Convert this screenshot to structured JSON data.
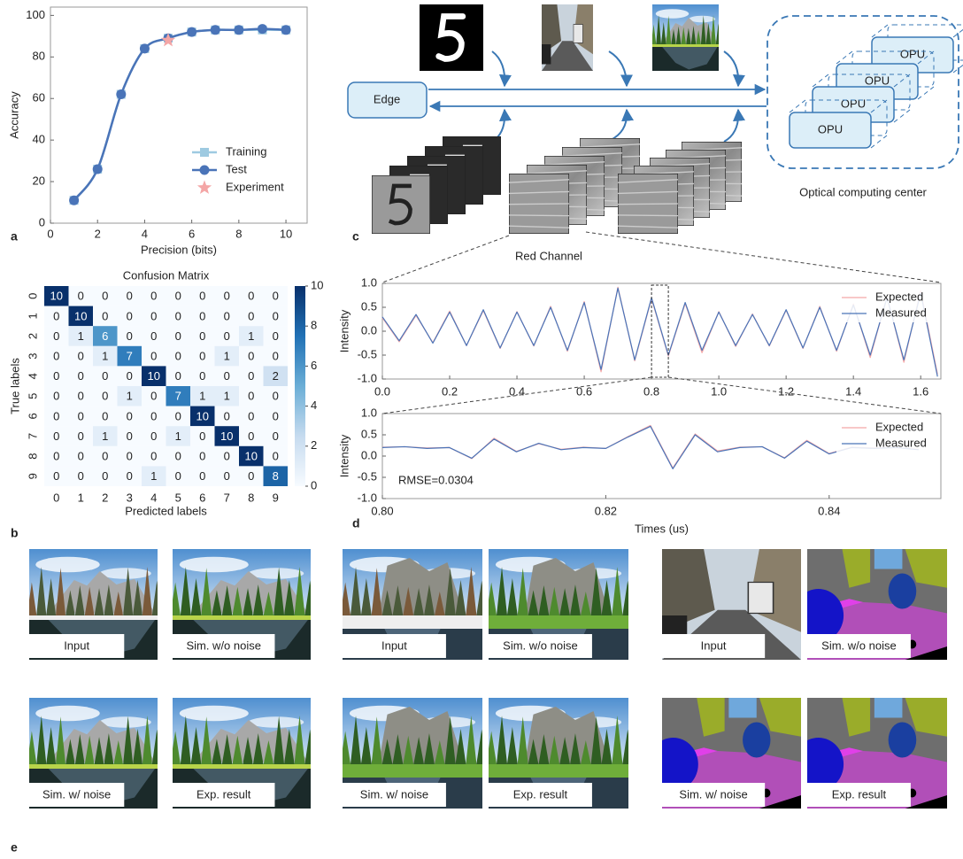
{
  "panel_labels": [
    "a",
    "b",
    "c",
    "d",
    "e"
  ],
  "chart_data": [
    {
      "type": "line",
      "x": [
        1,
        2,
        3,
        4,
        5,
        6,
        7,
        8,
        9,
        10
      ],
      "xlim": [
        0,
        10.9
      ],
      "ylim": [
        0,
        104
      ],
      "xticks": [
        0,
        2,
        4,
        6,
        8,
        10
      ],
      "yticks": [
        0,
        20,
        40,
        60,
        80,
        100
      ],
      "xlabel": "Precision (bits)",
      "ylabel": "Accuracy",
      "smooth": true,
      "legend": "lower right",
      "series": [
        {
          "name": "Training",
          "color": "#9ecae1",
          "marker": "square",
          "values": [
            11,
            26,
            62,
            84,
            89,
            92,
            93,
            93,
            93,
            93
          ]
        },
        {
          "name": "Test",
          "color": "#4a74b8",
          "marker": "circle",
          "values": [
            11,
            26,
            62,
            84,
            89,
            92,
            93,
            93,
            93.5,
            93
          ]
        },
        {
          "name": "Experiment",
          "color": "#f4a6a6",
          "marker": "star",
          "x": [
            5
          ],
          "values": [
            88
          ]
        }
      ]
    },
    {
      "type": "heatmap",
      "title": "Confusion Matrix",
      "xlabel": "Predicted labels",
      "ylabel": "True labels",
      "x_categories": [
        "0",
        "1",
        "2",
        "3",
        "4",
        "5",
        "6",
        "7",
        "8",
        "9"
      ],
      "y_categories": [
        "0",
        "1",
        "2",
        "3",
        "4",
        "5",
        "6",
        "7",
        "8",
        "9"
      ],
      "values": [
        [
          10,
          0,
          0,
          0,
          0,
          0,
          0,
          0,
          0,
          0
        ],
        [
          0,
          10,
          0,
          0,
          0,
          0,
          0,
          0,
          0,
          0
        ],
        [
          0,
          1,
          6,
          0,
          0,
          0,
          0,
          0,
          1,
          0
        ],
        [
          0,
          0,
          1,
          7,
          0,
          0,
          0,
          1,
          0,
          0
        ],
        [
          0,
          0,
          0,
          0,
          10,
          0,
          0,
          0,
          0,
          2
        ],
        [
          0,
          0,
          0,
          1,
          0,
          7,
          1,
          1,
          0,
          0
        ],
        [
          0,
          0,
          0,
          0,
          0,
          0,
          10,
          0,
          0,
          0
        ],
        [
          0,
          0,
          1,
          0,
          0,
          1,
          0,
          10,
          0,
          0
        ],
        [
          0,
          0,
          0,
          0,
          0,
          0,
          0,
          0,
          10,
          0
        ],
        [
          0,
          0,
          0,
          0,
          1,
          0,
          0,
          0,
          0,
          8
        ]
      ],
      "clim": [
        0,
        10
      ],
      "cticks": [
        0,
        2,
        4,
        6,
        8,
        10
      ]
    },
    {
      "type": "line",
      "x": [
        0,
        0.05,
        0.1,
        0.15,
        0.2,
        0.25,
        0.3,
        0.35,
        0.4,
        0.45,
        0.5,
        0.55,
        0.6,
        0.65,
        0.7,
        0.75,
        0.8,
        0.85,
        0.9,
        0.95,
        1,
        1.05,
        1.1,
        1.15,
        1.2,
        1.25,
        1.3,
        1.35,
        1.4,
        1.45,
        1.5,
        1.55,
        1.6,
        1.65
      ],
      "xlim": [
        0,
        1.66
      ],
      "ylim": [
        -1,
        1
      ],
      "xticks": [
        {
          "value": 0,
          "label": "0.0"
        },
        0.2,
        0.4,
        0.6,
        0.8,
        {
          "value": 1,
          "label": "1.0"
        },
        1.2,
        1.4,
        1.6
      ],
      "yticks": [
        {
          "value": -1,
          "label": "-1.0"
        },
        -0.5,
        {
          "value": 0,
          "label": "0.0"
        },
        0.5,
        {
          "value": 1,
          "label": "1.0"
        }
      ],
      "ylabel": "Intensity",
      "legend": "upper right",
      "series": [
        {
          "name": "Expected",
          "color": "#f4a6a6",
          "values": [
            0.28,
            -0.22,
            0.33,
            -0.24,
            0.42,
            -0.3,
            0.43,
            -0.36,
            0.41,
            -0.31,
            0.52,
            -0.42,
            0.62,
            -0.85,
            0.92,
            -0.62,
            0.68,
            -0.52,
            0.58,
            -0.45,
            0.41,
            -0.32,
            0.36,
            -0.31,
            0.44,
            -0.36,
            0.52,
            -0.42,
            0.57,
            -0.55,
            0.72,
            -0.65,
            0.85,
            -0.9
          ]
        },
        {
          "name": "Measured",
          "color": "#4a74b8",
          "values": [
            0.3,
            -0.2,
            0.35,
            -0.25,
            0.4,
            -0.3,
            0.45,
            -0.35,
            0.4,
            -0.3,
            0.5,
            -0.4,
            0.6,
            -0.8,
            0.9,
            -0.6,
            0.7,
            -0.5,
            0.6,
            -0.4,
            0.4,
            -0.3,
            0.35,
            -0.3,
            0.45,
            -0.35,
            0.5,
            -0.4,
            0.55,
            -0.5,
            0.7,
            -0.6,
            0.8,
            -0.95
          ]
        }
      ]
    },
    {
      "type": "line",
      "x": [
        0.8,
        0.802,
        0.804,
        0.806,
        0.808,
        0.81,
        0.812,
        0.814,
        0.816,
        0.818,
        0.82,
        0.822,
        0.824,
        0.826,
        0.828,
        0.83,
        0.832,
        0.834,
        0.836,
        0.838,
        0.84,
        0.842,
        0.844,
        0.846,
        0.848
      ],
      "xlim": [
        0.8,
        0.85
      ],
      "ylim": [
        -1,
        1
      ],
      "xticks": [
        {
          "value": 0.8,
          "label": "0.80"
        },
        0.82,
        0.84
      ],
      "yticks": [
        {
          "value": -1,
          "label": "-1.0"
        },
        -0.5,
        {
          "value": 0,
          "label": "0.0"
        },
        0.5,
        {
          "value": 1,
          "label": "1.0"
        }
      ],
      "xlabel": "Times (us)",
      "ylabel": "Intensity",
      "legend": "upper right",
      "annotations": [
        "RMSE=0.0304"
      ],
      "series": [
        {
          "name": "Expected",
          "color": "#f4a6a6",
          "values": [
            0.21,
            0.22,
            0.19,
            0.2,
            -0.06,
            0.42,
            0.11,
            0.29,
            0.16,
            0.21,
            0.18,
            0.46,
            0.72,
            -0.28,
            0.52,
            0.12,
            0.21,
            0.22,
            -0.04,
            0.37,
            0.06,
            0.21,
            0.19,
            0.2,
            0.16
          ]
        },
        {
          "name": "Measured",
          "color": "#4a74b8",
          "values": [
            0.2,
            0.22,
            0.18,
            0.2,
            -0.05,
            0.4,
            0.1,
            0.3,
            0.15,
            0.2,
            0.18,
            0.45,
            0.7,
            -0.3,
            0.5,
            0.1,
            0.2,
            0.22,
            -0.05,
            0.35,
            0.05,
            0.2,
            0.18,
            0.2,
            0.15
          ]
        }
      ]
    }
  ],
  "diagram": {
    "nodes": [
      {
        "label": "Edge"
      },
      {
        "label": "OPU"
      },
      {
        "label": "OPU"
      },
      {
        "label": "OPU"
      },
      {
        "label": "OPU"
      }
    ],
    "caption": "Optical computing center",
    "feature_label": "Red Channel"
  },
  "image_groups": [
    {
      "captions": [
        "Input",
        "Sim. w/o noise",
        "Sim. w/ noise",
        "Exp. result"
      ]
    },
    {
      "captions": [
        "Input",
        "Sim. w/o noise",
        "Sim. w/ noise",
        "Exp. result"
      ]
    },
    {
      "captions": [
        "Input",
        "Sim. w/o noise",
        "Sim. w/ noise",
        "Exp. result"
      ]
    }
  ]
}
